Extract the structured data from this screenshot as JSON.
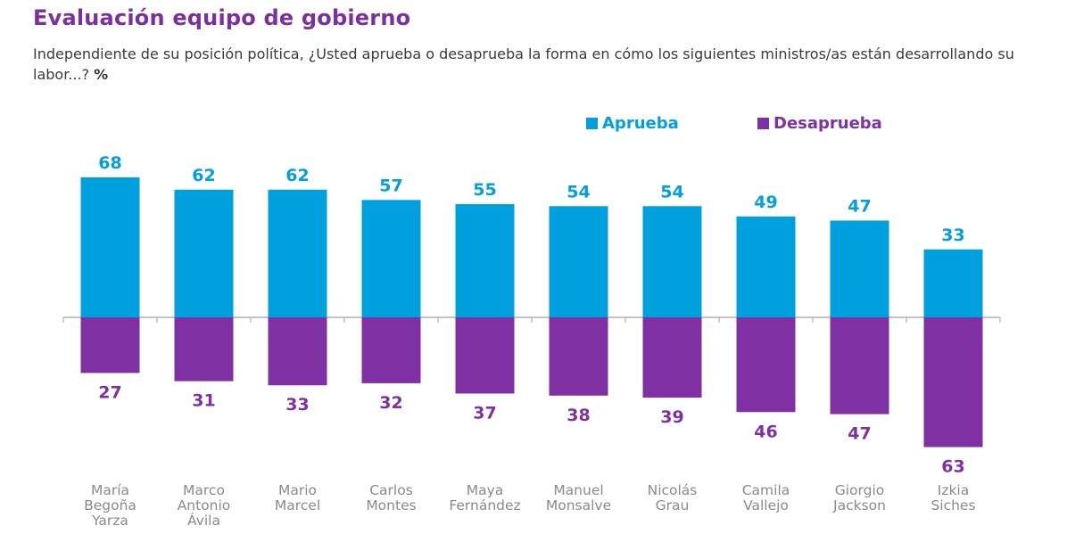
{
  "header": {
    "title": "Evaluación equipo de gobierno",
    "subtitle": "Independiente de su posición política, ¿Usted aprueba o desaprueba la forma en cómo los siguientes ministros/as están desarrollando su labor...?",
    "subtitle_unit": "%"
  },
  "colors": {
    "aprueba": "#00a0df",
    "desaprueba": "#7f31a3",
    "axis": "#b0b0b0"
  },
  "chart_data": {
    "type": "bar",
    "title": "Evaluación equipo de gobierno",
    "xlabel": "",
    "ylabel": "%",
    "grid": false,
    "legend_position": "top-right",
    "categories": [
      [
        "María",
        "Begoña",
        "Yarza"
      ],
      [
        "Marco",
        "Antonio",
        "Ávila"
      ],
      [
        "Mario",
        "Marcel"
      ],
      [
        "Carlos",
        "Montes"
      ],
      [
        "Maya",
        "Fernández"
      ],
      [
        "Manuel",
        "Monsalve"
      ],
      [
        "Nicolás",
        "Grau"
      ],
      [
        "Camila",
        "Vallejo"
      ],
      [
        "Giorgio",
        "Jackson"
      ],
      [
        "Izkia",
        "Siches"
      ]
    ],
    "series": [
      {
        "name": "Aprueba",
        "direction": "up",
        "values": [
          68,
          62,
          62,
          57,
          55,
          54,
          54,
          49,
          47,
          33
        ]
      },
      {
        "name": "Desaprueba",
        "direction": "down",
        "values": [
          27,
          31,
          33,
          32,
          37,
          38,
          39,
          46,
          47,
          63
        ]
      }
    ]
  }
}
